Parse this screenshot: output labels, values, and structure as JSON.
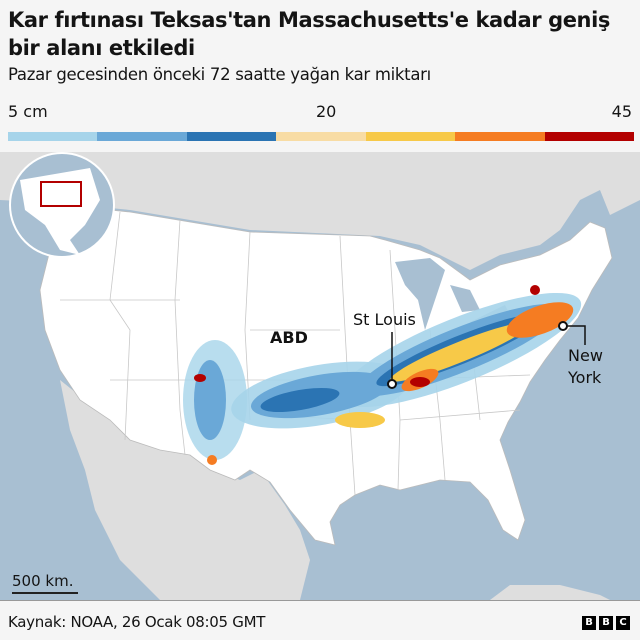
{
  "header": {
    "title": "Kar fırtınası Teksas'tan Massachusetts'e kadar geniş bir alanı etkiledi",
    "subtitle": "Pazar gecesinden önceki 72 saatte yağan kar miktarı"
  },
  "legend": {
    "labels": [
      "5 cm",
      "20",
      "45"
    ],
    "colors": [
      "#a6d4ea",
      "#6aa8d7",
      "#2b74b3",
      "#f8dca4",
      "#f7c948",
      "#f57c22",
      "#b30000"
    ]
  },
  "map": {
    "country_label": "ABD",
    "cities": [
      {
        "name": "St Louis"
      },
      {
        "name_line1": "New",
        "name_line2": "York"
      }
    ],
    "scale_label": "500 km.",
    "colors": {
      "water": "#a8bfd2",
      "land": "#dedede",
      "us": "#ffffff",
      "inset_highlight": "#b30000"
    }
  },
  "footer": {
    "source": "Kaynak: NOAA, 26 Ocak 08:05 GMT",
    "logo": [
      "B",
      "B",
      "C"
    ]
  }
}
